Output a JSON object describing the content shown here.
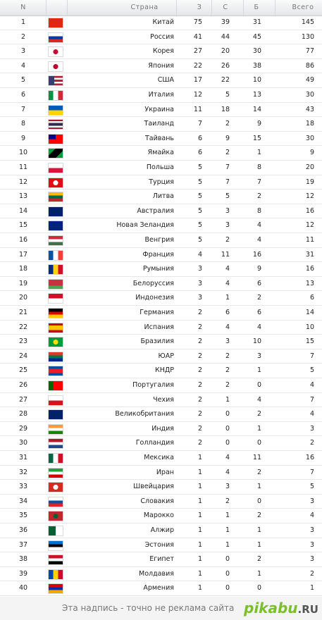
{
  "table": {
    "headers": [
      "N",
      "Страна",
      "З",
      "С",
      "Б",
      "Всего"
    ],
    "rows": [
      [
        1,
        "Китай",
        75,
        39,
        31,
        145
      ],
      [
        2,
        "Россия",
        41,
        44,
        45,
        130
      ],
      [
        3,
        "Корея",
        27,
        20,
        30,
        77
      ],
      [
        4,
        "Япония",
        22,
        26,
        38,
        86
      ],
      [
        5,
        "США",
        17,
        22,
        10,
        49
      ],
      [
        6,
        "Италия",
        12,
        5,
        13,
        30
      ],
      [
        7,
        "Украина",
        11,
        18,
        14,
        43
      ],
      [
        8,
        "Таиланд",
        7,
        2,
        9,
        18
      ],
      [
        9,
        "Тайвань",
        6,
        9,
        15,
        30
      ],
      [
        10,
        "Ямайка",
        6,
        2,
        1,
        9
      ],
      [
        11,
        "Польша",
        5,
        7,
        8,
        20
      ],
      [
        12,
        "Турция",
        5,
        7,
        7,
        19
      ],
      [
        13,
        "Литва",
        5,
        5,
        2,
        12
      ],
      [
        14,
        "Австралия",
        5,
        3,
        8,
        16
      ],
      [
        15,
        "Новая Зеландия",
        5,
        3,
        4,
        12
      ],
      [
        16,
        "Венгрия",
        5,
        2,
        4,
        11
      ],
      [
        17,
        "Франция",
        4,
        11,
        16,
        31
      ],
      [
        18,
        "Румыния",
        3,
        4,
        9,
        16
      ],
      [
        19,
        "Белоруссия",
        3,
        4,
        6,
        13
      ],
      [
        20,
        "Индонезия",
        3,
        1,
        2,
        6
      ],
      [
        21,
        "Германия",
        2,
        6,
        6,
        14
      ],
      [
        22,
        "Испания",
        2,
        4,
        4,
        10
      ],
      [
        23,
        "Бразилия",
        2,
        3,
        10,
        15
      ],
      [
        24,
        "ЮАР",
        2,
        2,
        3,
        7
      ],
      [
        25,
        "КНДР",
        2,
        2,
        1,
        5
      ],
      [
        26,
        "Португалия",
        2,
        2,
        0,
        4
      ],
      [
        27,
        "Чехия",
        2,
        1,
        4,
        7
      ],
      [
        28,
        "Великобритания",
        2,
        0,
        2,
        4
      ],
      [
        29,
        "Индия",
        2,
        0,
        1,
        3
      ],
      [
        30,
        "Голландия",
        2,
        0,
        0,
        2
      ],
      [
        31,
        "Мексика",
        1,
        4,
        11,
        16
      ],
      [
        32,
        "Иран",
        1,
        4,
        2,
        7
      ],
      [
        33,
        "Швейцария",
        1,
        3,
        1,
        5
      ],
      [
        34,
        "Словакия",
        1,
        2,
        0,
        3
      ],
      [
        35,
        "Марокко",
        1,
        1,
        2,
        4
      ],
      [
        36,
        "Алжир",
        1,
        1,
        1,
        3
      ],
      [
        37,
        "Эстония",
        1,
        1,
        1,
        3
      ],
      [
        38,
        "Египет",
        1,
        0,
        2,
        3
      ],
      [
        39,
        "Молдавия",
        1,
        0,
        1,
        2
      ],
      [
        40,
        "Армения",
        1,
        0,
        0,
        1
      ]
    ]
  },
  "footer": {
    "text": "Эта надпись - точно не реклама сайта",
    "logo": "pikabu",
    "logo_suffix": ".RU"
  }
}
